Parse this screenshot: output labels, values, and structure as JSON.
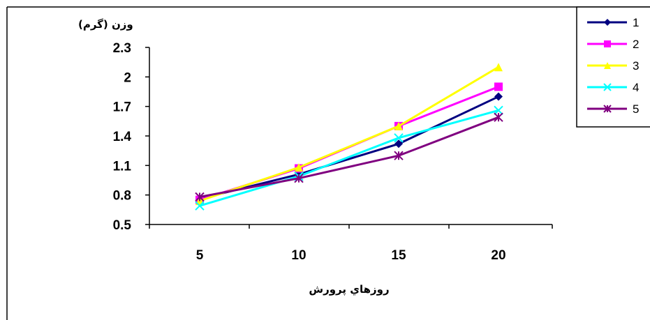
{
  "chart_data": {
    "type": "line",
    "x": [
      5,
      10,
      15,
      20
    ],
    "ylabel": "وزن (گرم)",
    "xlabel": "روزهاي پرورش",
    "yticks": [
      "0.5",
      "0.8",
      "1.1",
      "1.4",
      "1.7",
      "2",
      "2.3"
    ],
    "xticks": [
      "5",
      "10",
      "15",
      "20"
    ],
    "ylim": [
      0.5,
      2.3
    ],
    "grid": false,
    "legend_position": "top-right",
    "series": [
      {
        "name": "1",
        "color": "#000080",
        "marker": "diamond",
        "values": [
          0.76,
          1.01,
          1.32,
          1.8
        ]
      },
      {
        "name": "2",
        "color": "#FF00FF",
        "marker": "square",
        "values": [
          0.75,
          1.07,
          1.5,
          1.9
        ]
      },
      {
        "name": "3",
        "color": "#FFFF00",
        "marker": "triangle",
        "values": [
          0.74,
          1.08,
          1.5,
          2.1
        ]
      },
      {
        "name": "4",
        "color": "#00FFFF",
        "marker": "x",
        "values": [
          0.69,
          0.99,
          1.38,
          1.66
        ]
      },
      {
        "name": "5",
        "color": "#800080",
        "marker": "star",
        "values": [
          0.78,
          0.97,
          1.2,
          1.59
        ]
      }
    ]
  }
}
